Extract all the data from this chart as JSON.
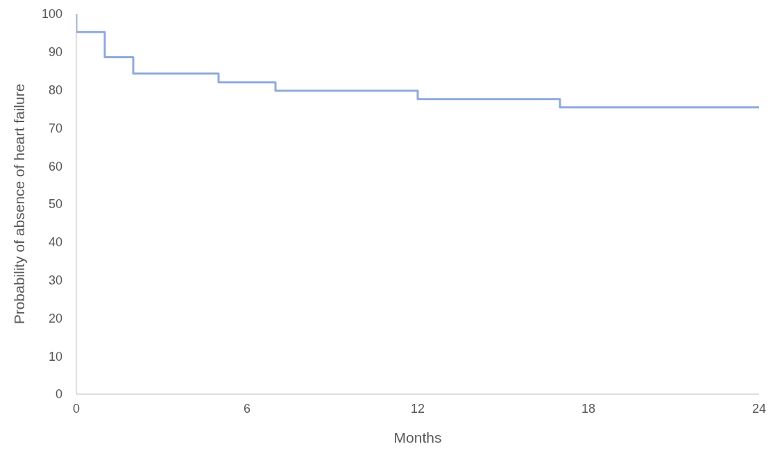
{
  "chart_data": {
    "type": "step",
    "xlabel": "Months",
    "ylabel": "Probability of absence of heart failure",
    "x": [
      0,
      0,
      1,
      2,
      5,
      7,
      12,
      17,
      24
    ],
    "series": [
      {
        "color": "#8eaadb",
        "values": [
          100,
          95.2,
          88.6,
          84.3,
          82.0,
          79.8,
          77.6,
          75.4,
          75.4
        ]
      }
    ],
    "xlim": [
      0,
      24
    ],
    "xticks": [
      0,
      6,
      12,
      18,
      24
    ],
    "ylim": [
      0,
      100
    ],
    "yticks": [
      0,
      10,
      20,
      30,
      40,
      50,
      60,
      70,
      80,
      90,
      100
    ],
    "grid": false,
    "legend": false,
    "marker": "none"
  }
}
